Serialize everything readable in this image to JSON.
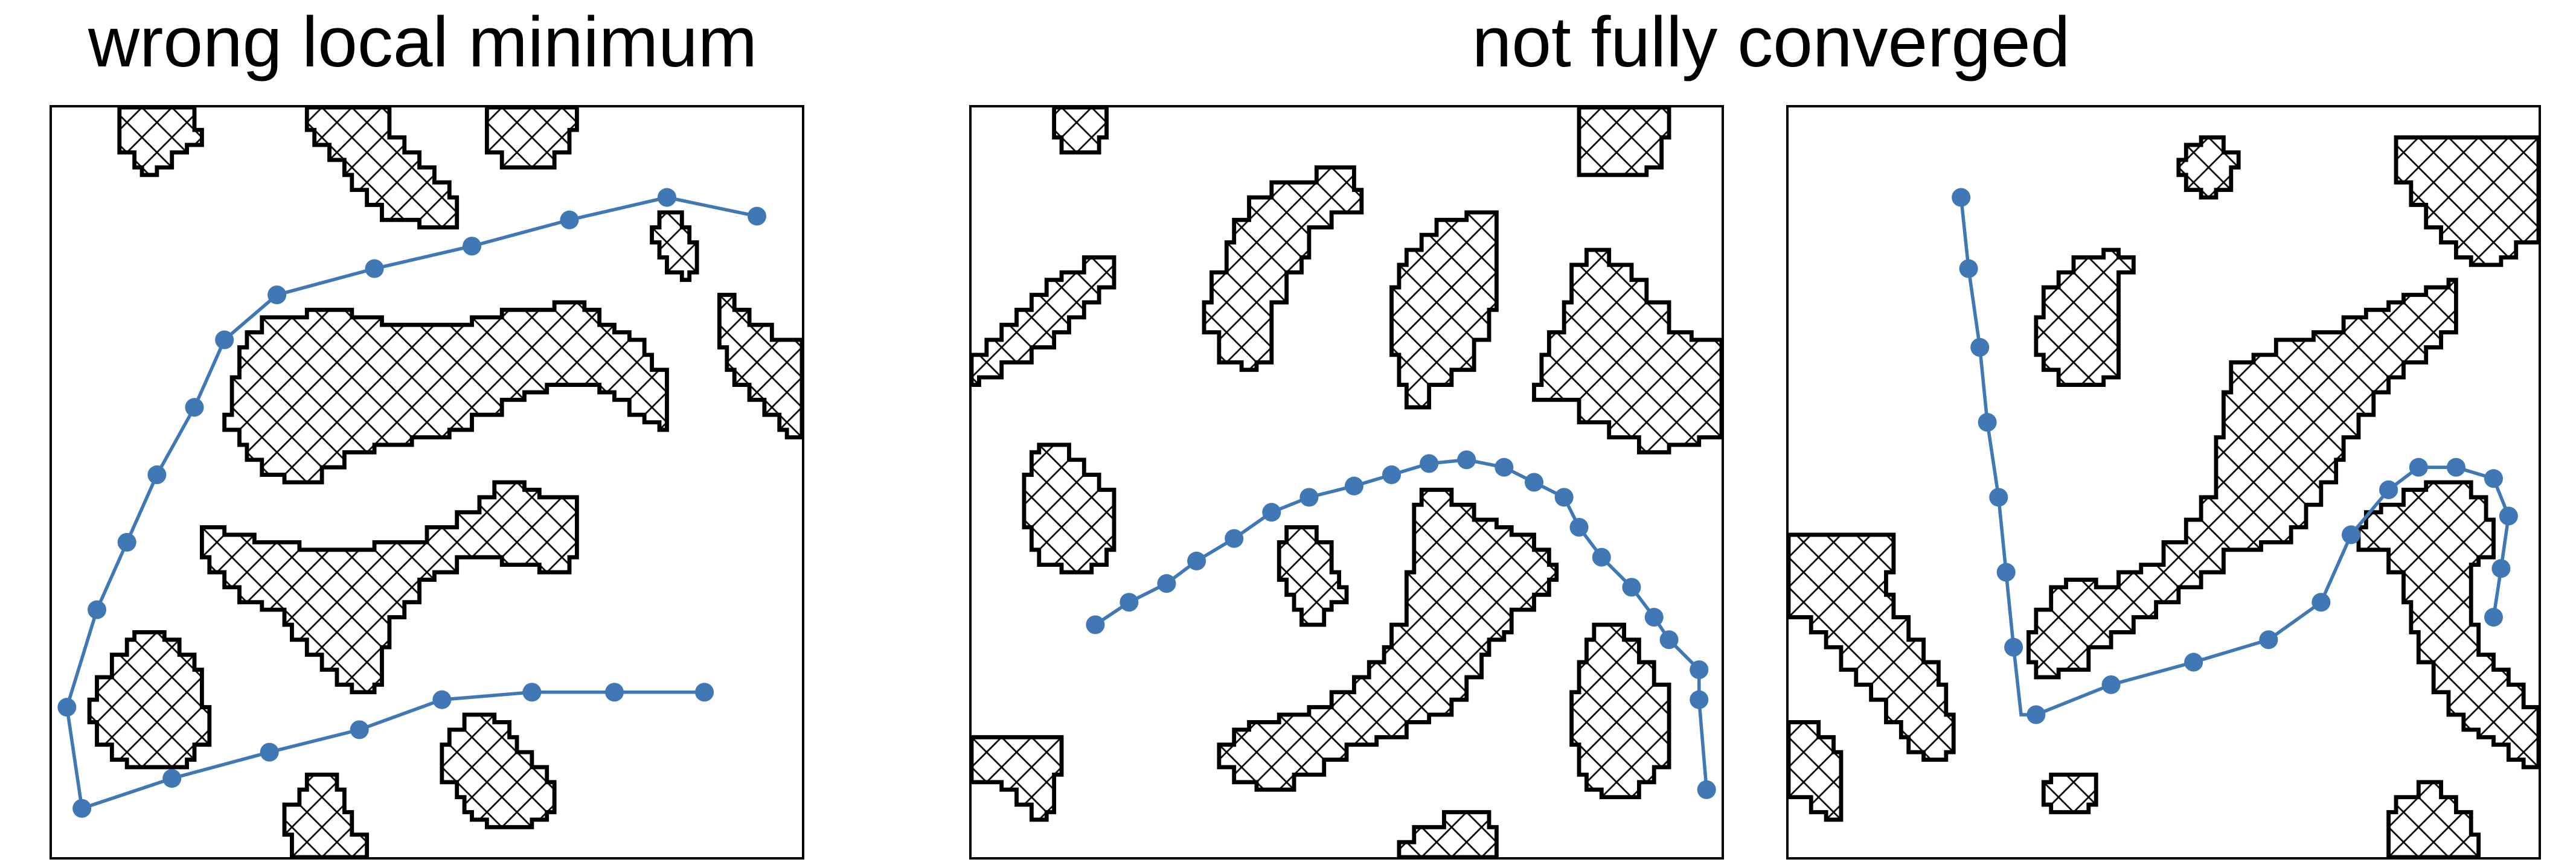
{
  "titles": {
    "left": "wrong local minimum",
    "right": "not fully converged"
  },
  "colors": {
    "path": "#3f78b5",
    "obstacle_stroke": "#000000",
    "hatch": "#000000",
    "background": "#ffffff"
  },
  "panels": [
    {
      "id": "panel-1",
      "caption": "wrong local minimum"
    },
    {
      "id": "panel-2",
      "caption": "not fully converged"
    },
    {
      "id": "panel-3",
      "caption": "not fully converged"
    }
  ]
}
